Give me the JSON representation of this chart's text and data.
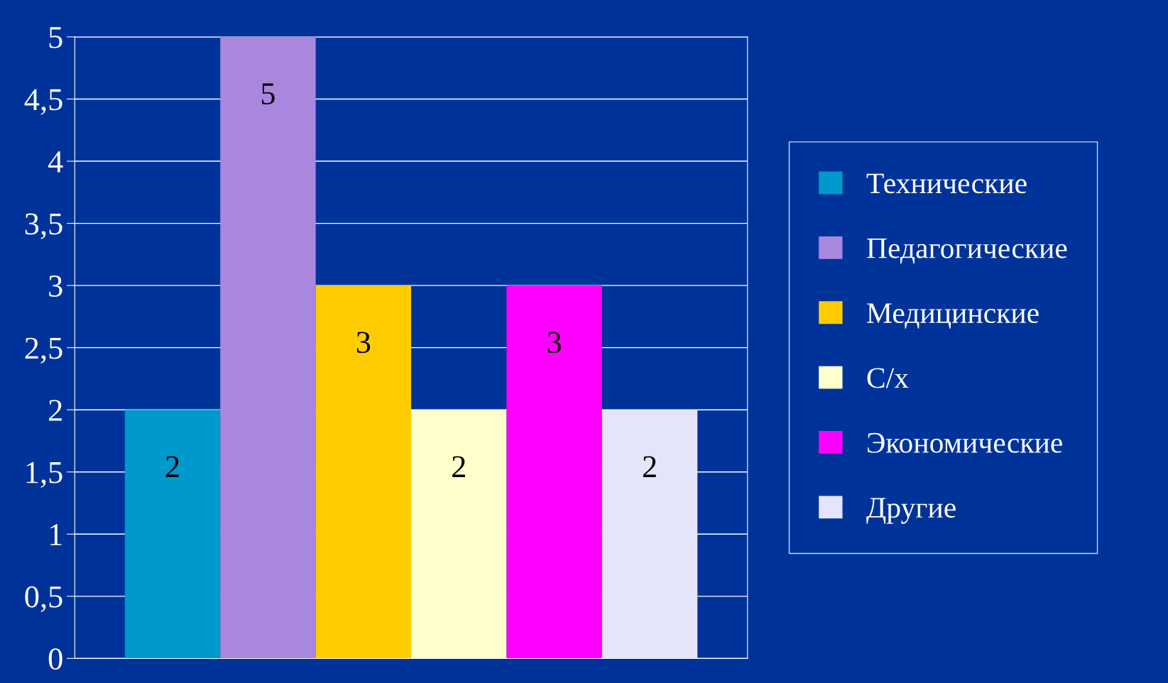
{
  "chart_data": {
    "type": "bar",
    "categories": [
      null
    ],
    "series": [
      {
        "name": "Технические",
        "color": "#0099cc",
        "values": [
          2
        ]
      },
      {
        "name": "Педагогические",
        "color": "#a987de",
        "values": [
          5
        ]
      },
      {
        "name": "Медицинские",
        "color": "#ffcc00",
        "values": [
          3
        ]
      },
      {
        "name": "С/х",
        "color": "#ffffcc",
        "values": [
          2
        ]
      },
      {
        "name": "Экономические",
        "color": "#ff00ff",
        "values": [
          3
        ]
      },
      {
        "name": "Другие",
        "color": "#e4e4fa",
        "values": [
          2
        ]
      }
    ],
    "ylim": [
      0,
      5
    ],
    "yticks": [
      0,
      {
        "value": 0.5,
        "label": "0,5"
      },
      1,
      {
        "value": 1.5,
        "label": "1,5"
      },
      2,
      {
        "value": 2.5,
        "label": "2,5"
      },
      3,
      {
        "value": 3.5,
        "label": "3,5"
      },
      4,
      {
        "value": 4.5,
        "label": "4,5"
      },
      5
    ],
    "grid": "y",
    "legend": "right",
    "data_labels": true
  }
}
